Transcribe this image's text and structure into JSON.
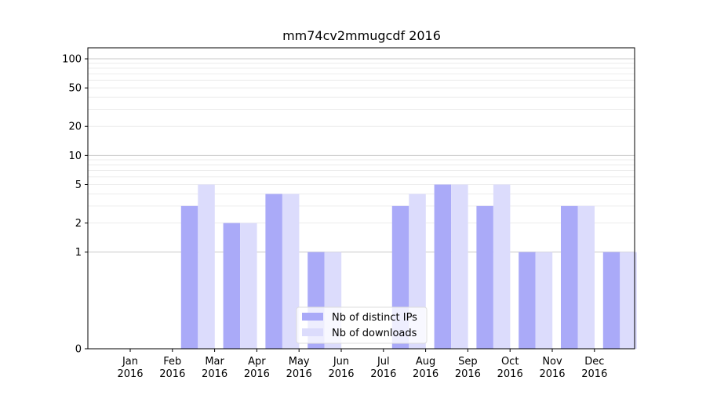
{
  "chart_data": {
    "type": "bar",
    "title": "mm74cv2mmugcdf 2016",
    "xlabel": "",
    "ylabel": "",
    "yscale": "symlog",
    "ylim": [
      0,
      130
    ],
    "yticks": [
      0,
      1,
      2,
      5,
      10,
      20,
      50,
      100
    ],
    "ytick_labels": [
      "0",
      "1",
      "2",
      "5",
      "10",
      "20",
      "50",
      "100"
    ],
    "categories": [
      "Jan\n2016",
      "Feb\n2016",
      "Mar\n2016",
      "Apr\n2016",
      "May\n2016",
      "Jun\n2016",
      "Jul\n2016",
      "Aug\n2016",
      "Sep\n2016",
      "Oct\n2016",
      "Nov\n2016",
      "Dec\n2016"
    ],
    "series": [
      {
        "name": "Nb of distinct IPs",
        "color": "#aaaaf8",
        "values": [
          0,
          3,
          2,
          4,
          1,
          0,
          3,
          5,
          3,
          1,
          3,
          1
        ]
      },
      {
        "name": "Nb of downloads",
        "color": "#dcdcfc",
        "values": [
          0,
          5,
          2,
          4,
          1,
          0,
          4,
          5,
          5,
          1,
          3,
          1
        ]
      }
    ],
    "grid": true,
    "legend": "lower-center"
  }
}
